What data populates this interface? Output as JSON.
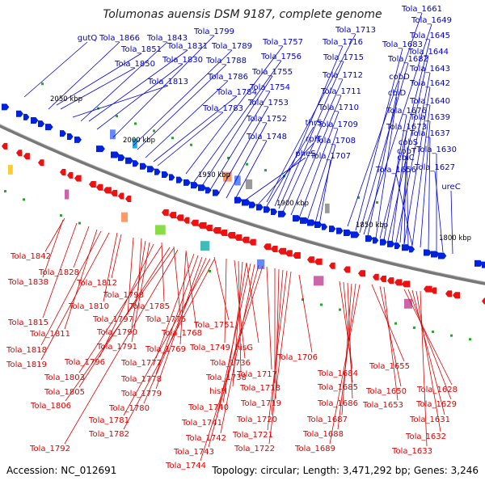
{
  "title": "Tolumonas auensis DSM 9187, complete genome",
  "footer": {
    "accession": "Accession: NC_012691",
    "topology": "Topology: circular; Length: 3,471,292 bp; Genes: 3,246"
  },
  "colors": {
    "forward": "#0000cc",
    "reverse": "#dd0000",
    "backbone": "#888888"
  },
  "kbp_ticks": [
    "2050 kbp",
    "2000 kbp",
    "1950 kbp",
    "1900 kbp",
    "1850 kbp",
    "1800 kbp"
  ],
  "forward_labels": [
    "gutQ",
    "Tola_1866",
    "Tola_1843",
    "Tola_1799",
    "Tola_1757",
    "Tola_1713",
    "Tola_1661",
    "Tola_1851",
    "Tola_1831",
    "Tola_1789",
    "Tola_1716",
    "Tola_1683",
    "Tola_1649",
    "Tola_1850",
    "Tola_1830",
    "Tola_1788",
    "Tola_1756",
    "Tola_1715",
    "Tola_1682",
    "Tola_1645",
    "Tola_1644",
    "Tola_1786",
    "Tola_1755",
    "Tola_1712",
    "cobD",
    "Tola_1643",
    "Tola_1813",
    "Tola_1784",
    "Tola_1754",
    "Tola_1711",
    "cbiD",
    "Tola_1642",
    "Tola_1783",
    "Tola_1753",
    "Tola_1710",
    "Tola_1676",
    "Tola_1640",
    "Tola_1752",
    "thrS",
    "Tola_1709",
    "Tola_1673",
    "Tola_1639",
    "rplT",
    "Tola_1748",
    "Tola_1708",
    "cobS",
    "Tola_1637",
    "pheS",
    "Tola_1707",
    "cbiC",
    "cobT",
    "Tola_1630",
    "Tola_1656",
    "Tola_1627",
    "ureC"
  ],
  "reverse_labels": [
    "Tola_1842",
    "Tola_1828",
    "Tola_1838",
    "Tola_1812",
    "Tola_1798",
    "Tola_1810",
    "Tola_1785",
    "Tola_1797",
    "Tola_1815",
    "Tola_1776",
    "Tola_1790",
    "Tola_1811",
    "Tola_1768",
    "Tola_1751",
    "Tola_1791",
    "Tola_1769",
    "Tola_1818",
    "Tola_1749",
    "hisG",
    "Tola_1706",
    "Tola_1796",
    "Tola_1777",
    "Tola_1819",
    "Tola_1736",
    "Tola_1655",
    "Tola_1803",
    "Tola_1778",
    "Tola_1738",
    "Tola_1717",
    "Tola_1684",
    "Tola_1805",
    "Tola_1779",
    "hisH",
    "Tola_1718",
    "Tola_1685",
    "Tola_1650",
    "Tola_1628",
    "Tola_1806",
    "Tola_1780",
    "Tola_1740",
    "Tola_1719",
    "Tola_1686",
    "Tola_1653",
    "Tola_1629",
    "Tola_1781",
    "Tola_1741",
    "Tola_1720",
    "Tola_1687",
    "Tola_1631",
    "Tola_1782",
    "Tola_1742",
    "Tola_1721",
    "Tola_1688",
    "Tola_1632",
    "Tola_1792",
    "Tola_1743",
    "Tola_1722",
    "Tola_1689",
    "Tola_1633",
    "Tola_1744"
  ]
}
